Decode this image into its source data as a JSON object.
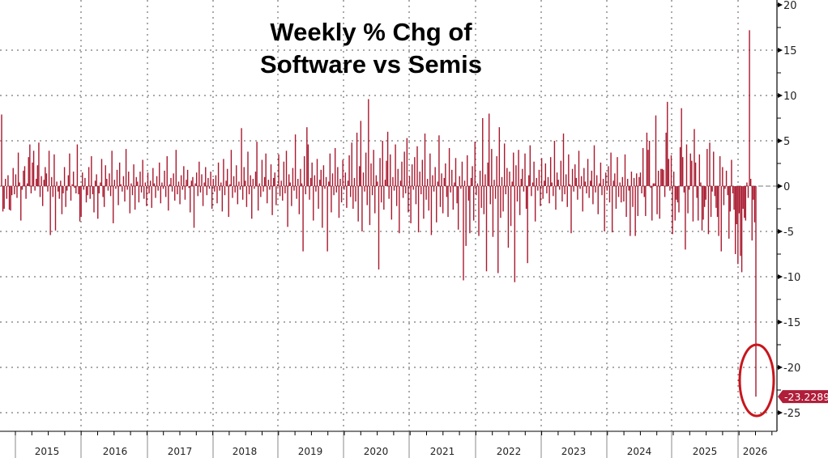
{
  "chart_data": {
    "type": "bar",
    "title": [
      "Weekly % Chg of",
      "Software vs Semis"
    ],
    "xlabel": "",
    "ylabel": "",
    "ylim": [
      -25,
      20
    ],
    "yticks": [
      20,
      15,
      10,
      5,
      0,
      -5,
      -10,
      -15,
      -20,
      -25
    ],
    "year_labels": [
      "2015",
      "2016",
      "2017",
      "2018",
      "2019",
      "2020",
      "2021",
      "2022",
      "2023",
      "2024",
      "2025",
      "2026"
    ],
    "grid": true,
    "last_value_label": "-23.2289",
    "bar_color": "#a8192e",
    "highlight_color": "#c8161d",
    "values": [
      7.9,
      -2.8,
      -2.5,
      0.8,
      -1.4,
      1.2,
      -2.6,
      -2.7,
      -1.0,
      2.0,
      -0.9,
      1.3,
      -1.3,
      3.7,
      0.4,
      -3.8,
      -0.4,
      1.7,
      2.2,
      -1.4,
      0.3,
      3.2,
      4.6,
      -0.8,
      2.6,
      3.9,
      -0.5,
      0.8,
      2.3,
      4.8,
      -1.2,
      1.1,
      -2.2,
      0.7,
      2.1,
      1.4,
      -0.6,
      3.9,
      -5.4,
      1.0,
      -1.2,
      3.5,
      -4.9,
      0.5,
      -0.6,
      -1.4,
      0.6,
      -3.1,
      -0.8,
      2.1,
      -2.3,
      -0.5,
      1.2,
      3.6,
      -1.6,
      0.2,
      1.6,
      -0.2,
      -0.8,
      4.6,
      -0.9,
      -3.9,
      -3.4,
      1.5,
      -0.4,
      0.9,
      -1.8,
      -1.0,
      2.1,
      -1.4,
      3.3,
      -0.9,
      -2.9,
      0.6,
      1.3,
      -3.6,
      -0.8,
      0.4,
      3.0,
      -1.2,
      -2.3,
      2.3,
      0.8,
      -0.5,
      1.4,
      -1.1,
      3.9,
      -4.1,
      0.7,
      -0.3,
      1.8,
      -2.1,
      2.6,
      0.2,
      -0.6,
      1.1,
      -1.7,
      4.1,
      -0.4,
      1.6,
      -3.0,
      0.3,
      -1.0,
      2.4,
      -2.6,
      1.0,
      0.5,
      -1.8,
      1.6,
      -0.7,
      2.9,
      -1.4,
      0.4,
      -2.2,
      1.5,
      -0.8,
      0.6,
      -2.4,
      2.0,
      0.3,
      -1.3,
      1.1,
      -0.5,
      2.6,
      -1.9,
      0.4,
      -0.3,
      1.7,
      -1.2,
      3.3,
      -2.7,
      0.2,
      0.9,
      -0.6,
      1.4,
      -1.6,
      4.0,
      -0.9,
      0.5,
      -2.0,
      1.2,
      -0.4,
      2.2,
      -1.5,
      0.7,
      1.8,
      -0.2,
      -2.9,
      0.6,
      1.0,
      -4.6,
      0.3,
      1.5,
      -1.1,
      2.7,
      -0.7,
      1.3,
      -2.2,
      0.4,
      2.1,
      -1.0,
      0.9,
      -0.3,
      1.6,
      -2.5,
      0.8,
      -0.6,
      1.2,
      -1.9,
      2.6,
      -0.5,
      0.4,
      -2.8,
      3.0,
      -1.0,
      0.6,
      1.9,
      -3.4,
      0.2,
      4.0,
      -1.3,
      1.1,
      -0.7,
      2.3,
      -2.0,
      0.5,
      -0.4,
      6.4,
      -1.5,
      2.1,
      0.6,
      -2.3,
      3.8,
      -0.9,
      1.2,
      -3.6,
      0.8,
      -0.3,
      1.6,
      4.9,
      -2.7,
      0.3,
      -1.2,
      2.9,
      -0.6,
      1.0,
      3.6,
      -1.9,
      0.7,
      -0.4,
      2.4,
      -3.2,
      0.9,
      1.5,
      -2.1,
      0.2,
      3.5,
      -1.1,
      0.6,
      -1.6,
      2.7,
      -0.8,
      3.9,
      -4.5,
      1.3,
      0.4,
      -2.2,
      2.0,
      -0.5,
      5.7,
      -1.4,
      0.8,
      -3.1,
      1.9,
      0.3,
      -7.2,
      3.3,
      -0.9,
      6.5,
      4.6,
      -1.5,
      0.9,
      2.6,
      -3.8,
      1.2,
      -0.6,
      3.0,
      -2.5,
      0.7,
      1.8,
      -4.6,
      2.3,
      -0.3,
      1.0,
      -7.2,
      0.5,
      3.6,
      -2.9,
      1.4,
      -1.0,
      4.2,
      -0.7,
      2.1,
      -3.5,
      0.8,
      -1.8,
      2.9,
      -0.4,
      1.5,
      -2.4,
      0.6,
      3.4,
      -1.2,
      4.8,
      -2.5,
      0.9,
      -1.7,
      5.9,
      -3.9,
      2.2,
      7.2,
      -5.0,
      1.5,
      -0.6,
      3.7,
      -2.1,
      9.6,
      -4.3,
      2.5,
      -1.0,
      4.0,
      -3.0,
      1.2,
      0.5,
      -9.2,
      3.1,
      -1.8,
      5.0,
      -2.6,
      0.7,
      2.8,
      6.0,
      -1.4,
      3.5,
      -3.7,
      1.0,
      -0.5,
      4.6,
      -2.2,
      1.9,
      -5.2,
      0.6,
      2.7,
      -1.3,
      3.8,
      -0.8,
      5.3,
      -2.9,
      1.1,
      -4.1,
      2.4,
      -0.4,
      3.2,
      -2.0,
      4.4,
      -5.1,
      1.6,
      -0.9,
      2.9,
      -3.6,
      5.8,
      -1.5,
      0.8,
      -2.7,
      3.6,
      -5.4,
      1.2,
      -0.6,
      2.1,
      -4.0,
      0.5,
      5.6,
      -2.3,
      1.4,
      -3.0,
      0.9,
      2.5,
      -1.2,
      -3.4,
      4.2,
      -0.7,
      1.8,
      -2.6,
      0.4,
      3.1,
      -1.9,
      -4.8,
      1.1,
      -0.3,
      2.7,
      -10.4,
      0.6,
      -6.6,
      3.4,
      -1.6,
      -5.2,
      0.9,
      2.2,
      -3.8,
      4.9,
      -1.0,
      0.3,
      -5.5,
      1.7,
      -2.4,
      7.5,
      -3.1,
      1.3,
      -9.4,
      2.6,
      8.0,
      -2.0,
      4.1,
      -5.6,
      0.7,
      -1.4,
      3.3,
      -9.6,
      6.5,
      -3.5,
      1.0,
      -2.8,
      4.7,
      -0.9,
      2.0,
      -6.8,
      1.6,
      -4.4,
      0.5,
      3.7,
      -10.6,
      2.3,
      -1.7,
      4.0,
      -3.2,
      0.8,
      1.9,
      -0.6,
      3.6,
      -2.5,
      -8.5,
      1.2,
      4.5,
      -1.1,
      0.4,
      2.7,
      -3.9,
      0.9,
      -0.5,
      1.8,
      -2.2,
      3.1,
      -1.4,
      0.6,
      2.5,
      -0.8,
      1.0,
      -1.9,
      3.2,
      0.4,
      -1.1,
      5.0,
      -2.6,
      1.5,
      0.7,
      -0.4,
      2.8,
      -1.7,
      5.8,
      -0.9,
      1.3,
      -2.3,
      3.5,
      0.2,
      -5.2,
      1.9,
      -0.6,
      2.4,
      0.9,
      -1.5,
      3.9,
      -0.3,
      1.1,
      -2.8,
      2.0,
      0.5,
      -0.8,
      3.0,
      -1.3,
      0.6,
      1.7,
      -2.0,
      4.5,
      -0.7,
      1.2,
      -3.1,
      0.3,
      2.6,
      -1.0,
      0.8,
      -5.0,
      1.5,
      -0.5,
      2.2,
      -1.8,
      3.7,
      -5.1,
      0.6,
      1.4,
      -2.5,
      3.2,
      -1.2,
      0.4,
      -1.8,
      1.0,
      -1.7,
      3.5,
      -3.4,
      0.8,
      -0.5,
      -5.5,
      1.6,
      -2.3,
      0.9,
      -5.5,
      1.4,
      -3.3,
      1.0,
      1.5,
      -0.8,
      4.2,
      -1.2,
      -3.3,
      5.9,
      4.0,
      5.0,
      -0.2,
      -3.8,
      0.3,
      0.3,
      7.8,
      -3.1,
      1.7,
      -3.6,
      1.9,
      1.9,
      1.8,
      -1.2,
      5.9,
      9.3,
      3.0,
      -0.5,
      3.4,
      -5.3,
      1.6,
      -3.8,
      -1.5,
      -1.8,
      -2.9,
      4.3,
      8.6,
      3.2,
      -0.7,
      -7.0,
      4.6,
      -3.0,
      -0.4,
      3.6,
      2.8,
      -3.9,
      6.3,
      2.6,
      -1.3,
      -3.8,
      3.5,
      0.4,
      -4.9,
      -3.7,
      -2.3,
      -1.5,
      4.1,
      -5.3,
      4.8,
      -3.4,
      -0.6,
      3.8,
      -1.1,
      -2.4,
      -3.4,
      -5.5,
      3.3,
      -7.2,
      2.1,
      -2.1,
      -0.3,
      1.7,
      -1.0,
      -5.8,
      -2.8,
      2.9,
      -0.8,
      -2.6,
      -7.5,
      -4.2,
      -8.6,
      -3.0,
      -7.7,
      -9.5,
      -2.5,
      -3.5,
      -3.8,
      0.4,
      -1.3,
      17.2,
      0.8,
      -6.0,
      -1.5,
      -4.0,
      -23.2289
    ]
  }
}
